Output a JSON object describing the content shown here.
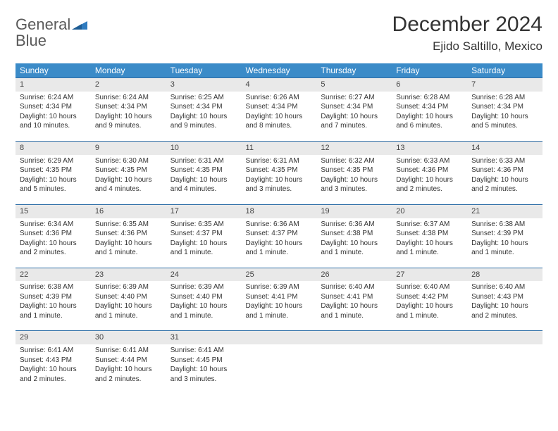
{
  "brand": {
    "word1": "General",
    "word2": "Blue"
  },
  "header": {
    "title": "December 2024",
    "location": "Ejido Saltillo, Mexico"
  },
  "colors": {
    "header_bg": "#3b8bc8",
    "header_text": "#ffffff",
    "daynum_bg": "#e9e9e9",
    "border_top": "#2f6fa8",
    "body_text": "#333333",
    "brand_gray": "#5a5a5a",
    "brand_blue": "#2f7bbf"
  },
  "typography": {
    "title_fontsize": 30,
    "location_fontsize": 17,
    "dayheader_fontsize": 12,
    "cell_fontsize": 10
  },
  "days_of_week": [
    "Sunday",
    "Monday",
    "Tuesday",
    "Wednesday",
    "Thursday",
    "Friday",
    "Saturday"
  ],
  "weeks": [
    [
      {
        "num": "1",
        "sunrise": "Sunrise: 6:24 AM",
        "sunset": "Sunset: 4:34 PM",
        "daylight": "Daylight: 10 hours and 10 minutes."
      },
      {
        "num": "2",
        "sunrise": "Sunrise: 6:24 AM",
        "sunset": "Sunset: 4:34 PM",
        "daylight": "Daylight: 10 hours and 9 minutes."
      },
      {
        "num": "3",
        "sunrise": "Sunrise: 6:25 AM",
        "sunset": "Sunset: 4:34 PM",
        "daylight": "Daylight: 10 hours and 9 minutes."
      },
      {
        "num": "4",
        "sunrise": "Sunrise: 6:26 AM",
        "sunset": "Sunset: 4:34 PM",
        "daylight": "Daylight: 10 hours and 8 minutes."
      },
      {
        "num": "5",
        "sunrise": "Sunrise: 6:27 AM",
        "sunset": "Sunset: 4:34 PM",
        "daylight": "Daylight: 10 hours and 7 minutes."
      },
      {
        "num": "6",
        "sunrise": "Sunrise: 6:28 AM",
        "sunset": "Sunset: 4:34 PM",
        "daylight": "Daylight: 10 hours and 6 minutes."
      },
      {
        "num": "7",
        "sunrise": "Sunrise: 6:28 AM",
        "sunset": "Sunset: 4:34 PM",
        "daylight": "Daylight: 10 hours and 5 minutes."
      }
    ],
    [
      {
        "num": "8",
        "sunrise": "Sunrise: 6:29 AM",
        "sunset": "Sunset: 4:35 PM",
        "daylight": "Daylight: 10 hours and 5 minutes."
      },
      {
        "num": "9",
        "sunrise": "Sunrise: 6:30 AM",
        "sunset": "Sunset: 4:35 PM",
        "daylight": "Daylight: 10 hours and 4 minutes."
      },
      {
        "num": "10",
        "sunrise": "Sunrise: 6:31 AM",
        "sunset": "Sunset: 4:35 PM",
        "daylight": "Daylight: 10 hours and 4 minutes."
      },
      {
        "num": "11",
        "sunrise": "Sunrise: 6:31 AM",
        "sunset": "Sunset: 4:35 PM",
        "daylight": "Daylight: 10 hours and 3 minutes."
      },
      {
        "num": "12",
        "sunrise": "Sunrise: 6:32 AM",
        "sunset": "Sunset: 4:35 PM",
        "daylight": "Daylight: 10 hours and 3 minutes."
      },
      {
        "num": "13",
        "sunrise": "Sunrise: 6:33 AM",
        "sunset": "Sunset: 4:36 PM",
        "daylight": "Daylight: 10 hours and 2 minutes."
      },
      {
        "num": "14",
        "sunrise": "Sunrise: 6:33 AM",
        "sunset": "Sunset: 4:36 PM",
        "daylight": "Daylight: 10 hours and 2 minutes."
      }
    ],
    [
      {
        "num": "15",
        "sunrise": "Sunrise: 6:34 AM",
        "sunset": "Sunset: 4:36 PM",
        "daylight": "Daylight: 10 hours and 2 minutes."
      },
      {
        "num": "16",
        "sunrise": "Sunrise: 6:35 AM",
        "sunset": "Sunset: 4:36 PM",
        "daylight": "Daylight: 10 hours and 1 minute."
      },
      {
        "num": "17",
        "sunrise": "Sunrise: 6:35 AM",
        "sunset": "Sunset: 4:37 PM",
        "daylight": "Daylight: 10 hours and 1 minute."
      },
      {
        "num": "18",
        "sunrise": "Sunrise: 6:36 AM",
        "sunset": "Sunset: 4:37 PM",
        "daylight": "Daylight: 10 hours and 1 minute."
      },
      {
        "num": "19",
        "sunrise": "Sunrise: 6:36 AM",
        "sunset": "Sunset: 4:38 PM",
        "daylight": "Daylight: 10 hours and 1 minute."
      },
      {
        "num": "20",
        "sunrise": "Sunrise: 6:37 AM",
        "sunset": "Sunset: 4:38 PM",
        "daylight": "Daylight: 10 hours and 1 minute."
      },
      {
        "num": "21",
        "sunrise": "Sunrise: 6:38 AM",
        "sunset": "Sunset: 4:39 PM",
        "daylight": "Daylight: 10 hours and 1 minute."
      }
    ],
    [
      {
        "num": "22",
        "sunrise": "Sunrise: 6:38 AM",
        "sunset": "Sunset: 4:39 PM",
        "daylight": "Daylight: 10 hours and 1 minute."
      },
      {
        "num": "23",
        "sunrise": "Sunrise: 6:39 AM",
        "sunset": "Sunset: 4:40 PM",
        "daylight": "Daylight: 10 hours and 1 minute."
      },
      {
        "num": "24",
        "sunrise": "Sunrise: 6:39 AM",
        "sunset": "Sunset: 4:40 PM",
        "daylight": "Daylight: 10 hours and 1 minute."
      },
      {
        "num": "25",
        "sunrise": "Sunrise: 6:39 AM",
        "sunset": "Sunset: 4:41 PM",
        "daylight": "Daylight: 10 hours and 1 minute."
      },
      {
        "num": "26",
        "sunrise": "Sunrise: 6:40 AM",
        "sunset": "Sunset: 4:41 PM",
        "daylight": "Daylight: 10 hours and 1 minute."
      },
      {
        "num": "27",
        "sunrise": "Sunrise: 6:40 AM",
        "sunset": "Sunset: 4:42 PM",
        "daylight": "Daylight: 10 hours and 1 minute."
      },
      {
        "num": "28",
        "sunrise": "Sunrise: 6:40 AM",
        "sunset": "Sunset: 4:43 PM",
        "daylight": "Daylight: 10 hours and 2 minutes."
      }
    ],
    [
      {
        "num": "29",
        "sunrise": "Sunrise: 6:41 AM",
        "sunset": "Sunset: 4:43 PM",
        "daylight": "Daylight: 10 hours and 2 minutes."
      },
      {
        "num": "30",
        "sunrise": "Sunrise: 6:41 AM",
        "sunset": "Sunset: 4:44 PM",
        "daylight": "Daylight: 10 hours and 2 minutes."
      },
      {
        "num": "31",
        "sunrise": "Sunrise: 6:41 AM",
        "sunset": "Sunset: 4:45 PM",
        "daylight": "Daylight: 10 hours and 3 minutes."
      },
      null,
      null,
      null,
      null
    ]
  ]
}
